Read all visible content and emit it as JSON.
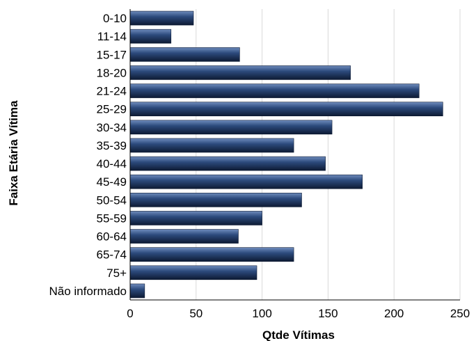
{
  "chart_data": {
    "type": "bar",
    "orientation": "horizontal",
    "ylabel": "Faixa Etária Vítima",
    "xlabel": "Qtde Vítimas",
    "xlim": [
      0,
      250
    ],
    "x_ticks": [
      0,
      50,
      100,
      150,
      200,
      250
    ],
    "grid": "vertical",
    "categories": [
      "0-10",
      "11-14",
      "15-17",
      "18-20",
      "21-24",
      "25-29",
      "30-34",
      "35-39",
      "40-44",
      "45-49",
      "50-54",
      "55-59",
      "60-64",
      "65-74",
      "75+",
      "Não informado"
    ],
    "values": [
      48,
      31,
      83,
      167,
      219,
      237,
      153,
      124,
      148,
      176,
      130,
      100,
      82,
      124,
      96,
      11
    ],
    "bar_color": "#2c4a7c",
    "bar_highlight_color": "#6f8cbd",
    "bar_shadow_color": "#0d1a33"
  }
}
